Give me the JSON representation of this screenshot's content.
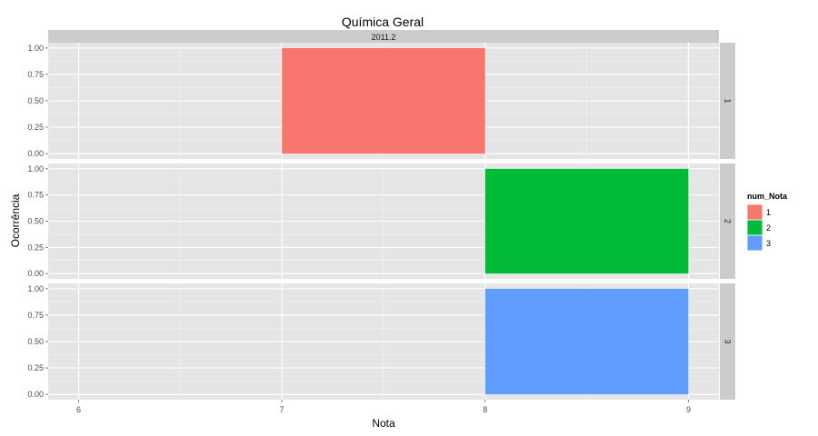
{
  "chart_data": {
    "type": "bar",
    "title": "Química Geral",
    "xlabel": "Nota",
    "ylabel": "Ocorrência",
    "column_strip": "2011.2",
    "xlim": [
      5.85,
      9.15
    ],
    "x_ticks": [
      6,
      7,
      8,
      9
    ],
    "ylim": [
      -0.05,
      1.05
    ],
    "y_ticks": [
      0,
      0.25,
      0.5,
      0.75,
      1
    ],
    "y_tick_labels": [
      "0.00",
      "0.25",
      "0.50",
      "0.75",
      "1.00"
    ],
    "grid": true,
    "legend": {
      "title": "num_Nota",
      "position": "right",
      "entries": [
        {
          "label": "1",
          "color": "#F8766D"
        },
        {
          "label": "2",
          "color": "#00BA38"
        },
        {
          "label": "3",
          "color": "#619CFF"
        }
      ]
    },
    "panels": [
      {
        "strip": "1",
        "color": "#F8766D",
        "bars": [
          {
            "x0": 7,
            "x1": 8,
            "value": 1
          }
        ]
      },
      {
        "strip": "2",
        "color": "#00BA38",
        "bars": [
          {
            "x0": 8,
            "x1": 9,
            "value": 1
          }
        ]
      },
      {
        "strip": "3",
        "color": "#619CFF",
        "bars": [
          {
            "x0": 8,
            "x1": 9,
            "value": 1
          }
        ]
      }
    ]
  },
  "colors": {
    "panel_background": "#E5E5E5",
    "grid_major": "#FFFFFF",
    "grid_minor": "#F2F2F2",
    "strip_background": "#CCCCCC"
  }
}
